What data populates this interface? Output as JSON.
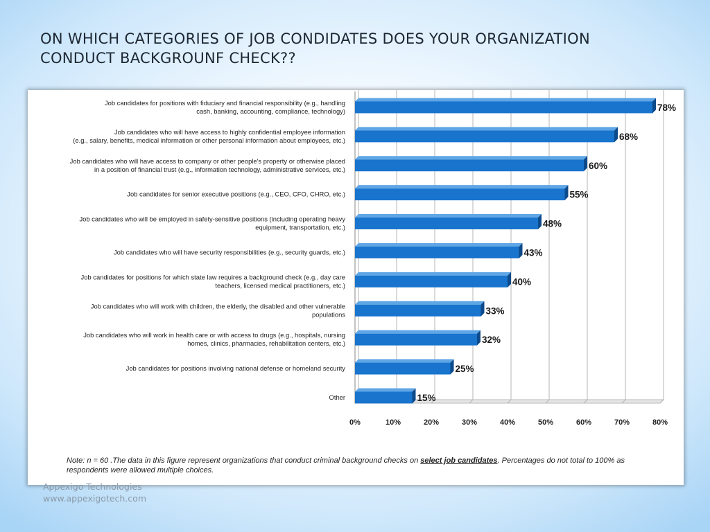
{
  "slide": {
    "title_line1": "ON WHICH CATEGORIES OF JOB  CONDIDATES DOES  YOUR ORGANIZATION",
    "title_line2": "CONDUCT BACKGROUNF CHECK??"
  },
  "chart_data": {
    "type": "bar",
    "orientation": "horizontal",
    "categories": [
      [
        "Job candidates for positions with fiduciary and financial responsibility (e.g., handling",
        "cash, banking,  accounting, compliance, technology)"
      ],
      [
        "Job candidates who will have access to highly confidential employee information",
        "(e.g., salary, benefits, medical information or other personal information about employees, etc.)"
      ],
      [
        "Job candidates who will have access to company or other people's property or otherwise placed",
        "in a position of financial trust (e.g., information technology, administrative services, etc.)"
      ],
      [
        "Job candidates for senior executive positions (e.g., CEO, CFO, CHRO, etc.)"
      ],
      [
        "Job candidates who will be employed in safety-sensitive positions (including operating heavy",
        "equipment, transportation, etc.)"
      ],
      [
        "Job candidates who will have security responsibilities (e.g., security guards, etc.)"
      ],
      [
        "Job candidates for positions for which state law requires a background check (e.g., day care",
        "teachers, licensed medical practitioners, etc.)"
      ],
      [
        "Job candidates who will work with children, the elderly, the disabled and other vulnerable",
        "populations"
      ],
      [
        "Job candidates who will work in health care or with access to drugs (e.g., hospitals, nursing",
        "homes, clinics, pharmacies, rehabilitation centers, etc.)"
      ],
      [
        "Job candidates for positions involving national defense or homeland security"
      ],
      [
        "Other"
      ]
    ],
    "values": [
      78,
      68,
      60,
      55,
      48,
      43,
      40,
      33,
      32,
      25,
      15
    ],
    "value_labels": [
      "78%",
      "68%",
      "60%",
      "55%",
      "48%",
      "43%",
      "40%",
      "33%",
      "32%",
      "25%",
      "15%"
    ],
    "x_ticks": [
      0,
      10,
      20,
      30,
      40,
      50,
      60,
      70,
      80
    ],
    "x_tick_labels": [
      "0%",
      "10%",
      "20%",
      "30%",
      "40%",
      "50%",
      "60%",
      "70%",
      "80%"
    ],
    "xlim": [
      0,
      80
    ],
    "grid": true,
    "bar_color": "#1874cd",
    "bar_shade_color": "#0d4a8a",
    "note_prefix": "Note: n = 60 .The data in this figure represent organizations that conduct criminal background checks on ",
    "note_emphasis": "select job candidates",
    "note_suffix": ". Percentages do not total to 100% as respondents were allowed multiple choices."
  },
  "footer": {
    "company": "Appexigo Technologies",
    "website": "www.appexigotech.com"
  }
}
